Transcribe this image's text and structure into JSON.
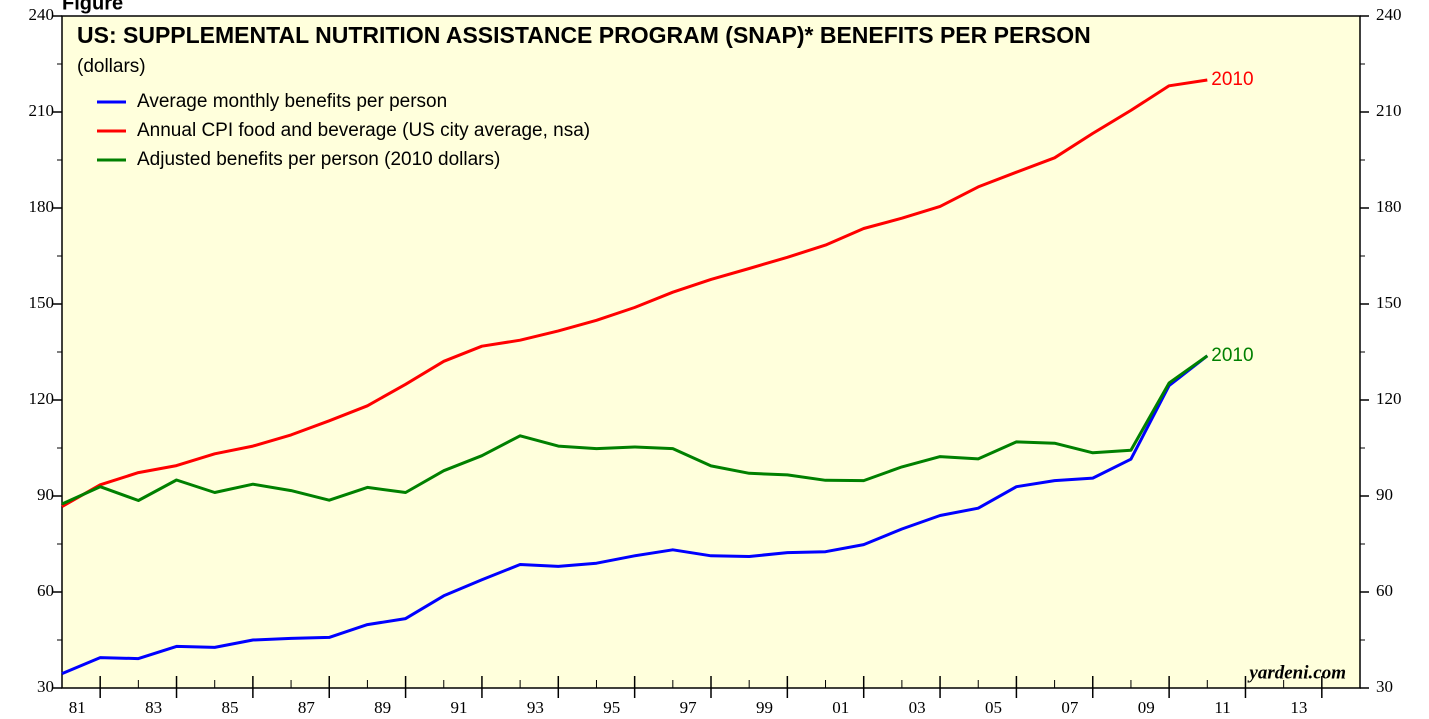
{
  "figure_label": "Figure",
  "chart_data": {
    "type": "line",
    "title": "US: SUPPLEMENTAL NUTRITION ASSISTANCE PROGRAM (SNAP)* BENEFITS PER PERSON",
    "subtitle": "(dollars)",
    "source": "yardeni.com",
    "x": [
      1980,
      1981,
      1982,
      1983,
      1984,
      1985,
      1986,
      1987,
      1988,
      1989,
      1990,
      1991,
      1992,
      1993,
      1994,
      1995,
      1996,
      1997,
      1998,
      1999,
      2000,
      2001,
      2002,
      2003,
      2004,
      2005,
      2006,
      2007,
      2008,
      2009,
      2010
    ],
    "series": [
      {
        "name": "Average monthly benefits per person",
        "color": "#0000ff",
        "values": [
          34.5,
          39.5,
          39.2,
          43.0,
          42.7,
          45.0,
          45.5,
          45.8,
          49.8,
          51.7,
          58.8,
          63.8,
          68.6,
          68.0,
          69.0,
          71.3,
          73.2,
          71.3,
          71.1,
          72.3,
          72.6,
          74.8,
          79.7,
          83.9,
          86.2,
          92.9,
          94.8,
          95.6,
          101.5,
          124.5,
          133.8
        ]
      },
      {
        "name": "Annual CPI food and beverage (US city average, nsa)",
        "color": "#ff0000",
        "values": [
          86.7,
          93.5,
          97.3,
          99.5,
          103.2,
          105.6,
          109.1,
          113.5,
          118.2,
          124.9,
          132.1,
          136.8,
          138.7,
          141.6,
          144.9,
          148.9,
          153.7,
          157.7,
          161.1,
          164.6,
          168.4,
          173.6,
          176.8,
          180.5,
          186.6,
          191.2,
          195.7,
          203.3,
          210.5,
          218.2,
          220.0
        ],
        "end_label": "2010"
      },
      {
        "name": "Adjusted benefits per person (2010 dollars)",
        "color": "#008000",
        "values": [
          87.5,
          92.9,
          88.6,
          95.0,
          91.1,
          93.7,
          91.7,
          88.7,
          92.7,
          91.1,
          97.9,
          102.6,
          108.8,
          105.6,
          104.8,
          105.3,
          104.8,
          99.4,
          97.1,
          96.6,
          94.9,
          94.8,
          99.1,
          102.3,
          101.6,
          106.9,
          106.5,
          103.5,
          104.3,
          125.3,
          133.8
        ],
        "end_label": "2010"
      }
    ],
    "xlim": [
      1980,
      2014
    ],
    "xticks": [
      {
        "value": 1981,
        "label": "81"
      },
      {
        "value": 1983,
        "label": "83"
      },
      {
        "value": 1985,
        "label": "85"
      },
      {
        "value": 1987,
        "label": "87"
      },
      {
        "value": 1989,
        "label": "89"
      },
      {
        "value": 1991,
        "label": "91"
      },
      {
        "value": 1993,
        "label": "93"
      },
      {
        "value": 1995,
        "label": "95"
      },
      {
        "value": 1997,
        "label": "97"
      },
      {
        "value": 1999,
        "label": "99"
      },
      {
        "value": 2001,
        "label": "01"
      },
      {
        "value": 2003,
        "label": "03"
      },
      {
        "value": 2005,
        "label": "05"
      },
      {
        "value": 2007,
        "label": "07"
      },
      {
        "value": 2009,
        "label": "09"
      },
      {
        "value": 2011,
        "label": "11"
      },
      {
        "value": 2013,
        "label": "13"
      }
    ],
    "ylim": [
      30,
      240
    ],
    "yticks": [
      30,
      60,
      90,
      120,
      150,
      180,
      210,
      240
    ],
    "background": "#ffffdc"
  }
}
